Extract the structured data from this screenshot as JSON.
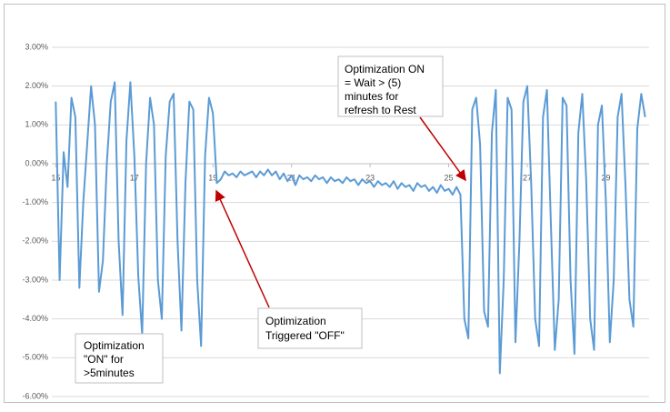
{
  "chart_data": {
    "type": "line",
    "color": "#5b9bd5",
    "grid": true,
    "xlim": [
      14.9,
      30.1
    ],
    "ylim": [
      -6,
      3
    ],
    "xticks": [
      15,
      17,
      19,
      21,
      23,
      25,
      27,
      29
    ],
    "yticks": [
      {
        "value": 3,
        "label": "3.00%"
      },
      {
        "value": 2,
        "label": "2.00%"
      },
      {
        "value": 1,
        "label": "1.00%"
      },
      {
        "value": 0,
        "label": "0.00%"
      },
      {
        "value": -1,
        "label": "-1.00%"
      },
      {
        "value": -2,
        "label": "-2.00%"
      },
      {
        "value": -3,
        "label": "-3.00%"
      },
      {
        "value": -4,
        "label": "-4.00%"
      },
      {
        "value": -5,
        "label": "-5.00%"
      },
      {
        "value": -6,
        "label": "-6.00%"
      }
    ],
    "x": [
      15.0,
      15.1,
      15.2,
      15.3,
      15.4,
      15.5,
      15.6,
      15.7,
      15.8,
      15.9,
      16.0,
      16.1,
      16.2,
      16.3,
      16.4,
      16.5,
      16.6,
      16.7,
      16.8,
      16.9,
      17.0,
      17.1,
      17.2,
      17.3,
      17.4,
      17.5,
      17.6,
      17.7,
      17.8,
      17.9,
      18.0,
      18.1,
      18.2,
      18.3,
      18.4,
      18.5,
      18.6,
      18.7,
      18.8,
      18.9,
      19.0,
      19.1,
      19.2,
      19.3,
      19.4,
      19.5,
      19.6,
      19.7,
      19.8,
      19.9,
      20.0,
      20.1,
      20.2,
      20.3,
      20.4,
      20.5,
      20.6,
      20.7,
      20.8,
      20.9,
      21.0,
      21.1,
      21.2,
      21.3,
      21.4,
      21.5,
      21.6,
      21.7,
      21.8,
      21.9,
      22.0,
      22.1,
      22.2,
      22.3,
      22.4,
      22.5,
      22.6,
      22.7,
      22.8,
      22.9,
      23.0,
      23.1,
      23.2,
      23.3,
      23.4,
      23.5,
      23.6,
      23.7,
      23.8,
      23.9,
      24.0,
      24.1,
      24.2,
      24.3,
      24.4,
      24.5,
      24.6,
      24.7,
      24.8,
      24.9,
      25.0,
      25.1,
      25.2,
      25.3,
      25.4,
      25.5,
      25.6,
      25.7,
      25.8,
      25.9,
      26.0,
      26.1,
      26.2,
      26.3,
      26.4,
      26.5,
      26.6,
      26.7,
      26.8,
      26.9,
      27.0,
      27.1,
      27.2,
      27.3,
      27.4,
      27.5,
      27.6,
      27.7,
      27.8,
      27.9,
      28.0,
      28.1,
      28.2,
      28.3,
      28.4,
      28.5,
      28.6,
      28.7,
      28.8,
      28.9,
      29.0,
      29.1,
      29.2,
      29.3,
      29.4,
      29.5,
      29.6,
      29.7,
      29.8,
      29.9,
      30.0
    ],
    "values": [
      1.6,
      -3.0,
      0.3,
      -0.6,
      1.7,
      1.2,
      -3.2,
      -1.0,
      0.5,
      2.0,
      1.0,
      -3.3,
      -2.5,
      0.0,
      1.6,
      2.1,
      -2.0,
      -3.9,
      0.6,
      2.1,
      0.2,
      -2.9,
      -4.4,
      0.0,
      1.7,
      1.0,
      -3.0,
      -4.0,
      0.2,
      1.6,
      1.8,
      -2.0,
      -4.3,
      -0.5,
      1.6,
      1.4,
      -3.0,
      -4.7,
      0.2,
      1.7,
      1.3,
      -0.5,
      -0.4,
      -0.2,
      -0.3,
      -0.25,
      -0.35,
      -0.2,
      -0.3,
      -0.25,
      -0.2,
      -0.35,
      -0.2,
      -0.3,
      -0.15,
      -0.3,
      -0.2,
      -0.4,
      -0.25,
      -0.45,
      -0.3,
      -0.55,
      -0.3,
      -0.4,
      -0.35,
      -0.45,
      -0.3,
      -0.4,
      -0.35,
      -0.5,
      -0.35,
      -0.45,
      -0.4,
      -0.5,
      -0.35,
      -0.45,
      -0.4,
      -0.55,
      -0.4,
      -0.5,
      -0.45,
      -0.6,
      -0.45,
      -0.55,
      -0.5,
      -0.6,
      -0.45,
      -0.65,
      -0.5,
      -0.6,
      -0.55,
      -0.7,
      -0.5,
      -0.6,
      -0.55,
      -0.7,
      -0.6,
      -0.75,
      -0.55,
      -0.7,
      -0.65,
      -0.8,
      -0.6,
      -0.8,
      -4.0,
      -4.5,
      1.4,
      1.7,
      0.5,
      -3.8,
      -4.2,
      0.8,
      1.9,
      -5.4,
      -3.0,
      1.7,
      1.4,
      -4.6,
      -2.0,
      1.6,
      2.0,
      -0.5,
      -4.0,
      -4.7,
      1.2,
      1.9,
      -1.5,
      -4.8,
      -3.5,
      1.7,
      1.5,
      -3.0,
      -4.9,
      0.8,
      1.8,
      -0.4,
      -4.0,
      -4.8,
      1.0,
      1.5,
      -1.0,
      -4.6,
      -3.0,
      1.2,
      1.8,
      -0.6,
      -3.5,
      -4.2,
      0.9,
      1.8,
      1.2
    ],
    "annotations": [
      {
        "lines": [
          "Optimization ON",
          "= Wait > (5)",
          "minutes for",
          "refresh to Rest"
        ]
      },
      {
        "lines": [
          "Optimization",
          "Triggered \"OFF\""
        ]
      },
      {
        "lines": [
          "Optimization",
          "\"ON\" for",
          ">5minutes"
        ]
      }
    ]
  }
}
